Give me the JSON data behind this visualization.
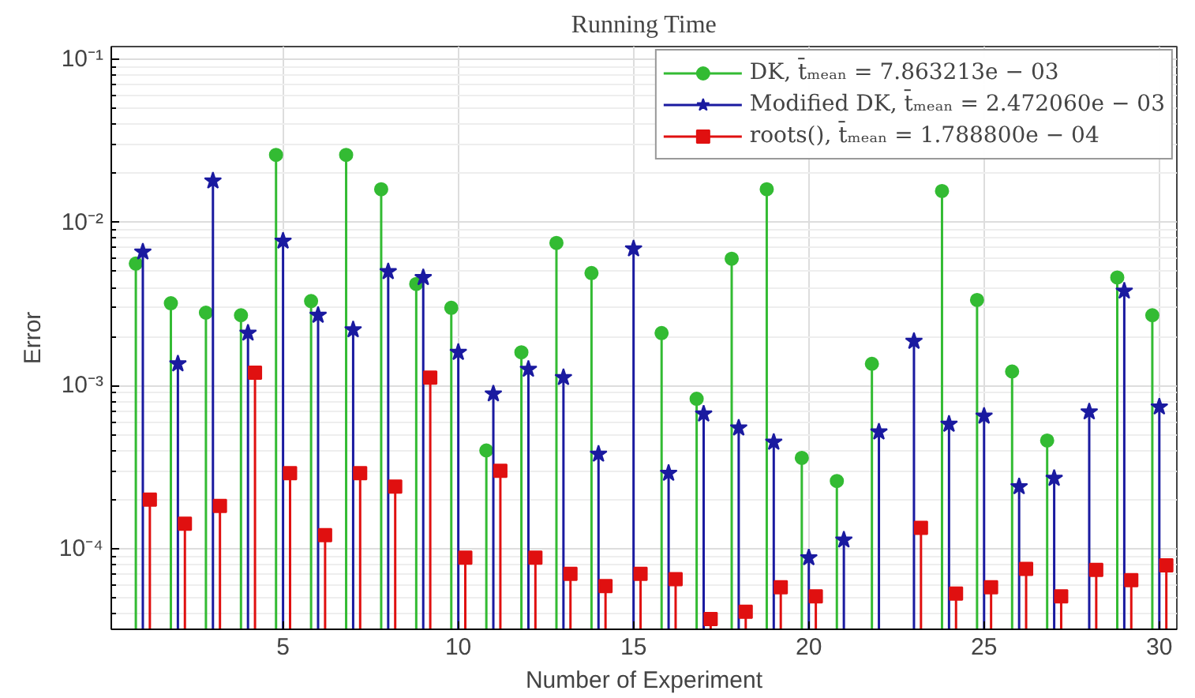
{
  "chart_data": {
    "type": "lollipop",
    "title": "Running Time",
    "xlabel": "Number of Experiment",
    "ylabel": "Error",
    "log": true,
    "grid": true,
    "legend": "top right",
    "xlim": [
      0.1,
      30.5
    ],
    "xticks": [
      5,
      10,
      15,
      20,
      25,
      30
    ],
    "ylim": [
      3.2e-05,
      0.12
    ],
    "yticks": [
      {
        "value": 0.0001,
        "label": "10⁻⁴"
      },
      {
        "value": 0.001,
        "label": "10⁻³"
      },
      {
        "value": 0.01,
        "label": "10⁻²"
      },
      {
        "value": 0.1,
        "label": "10⁻¹"
      }
    ],
    "series": [
      {
        "name": "DK, t̄ₘₑₐₙ = 7.863213e − 03",
        "color": "#33bb33",
        "marker": "circle",
        "x": [
          0.8,
          1.8,
          2.8,
          3.8,
          4.8,
          5.8,
          6.8,
          7.8,
          8.8,
          9.8,
          10.8,
          11.8,
          12.8,
          13.8,
          14.8,
          15.8,
          16.8,
          17.8,
          18.8,
          19.8,
          20.8,
          21.8,
          22.8,
          23.8,
          24.8,
          25.8,
          26.8,
          27.8,
          28.8,
          29.8
        ],
        "values": [
          0.0056,
          0.0032,
          0.0028,
          0.0027,
          0.026,
          0.0033,
          0.026,
          0.016,
          0.0042,
          0.003,
          0.0004,
          0.0016,
          0.0075,
          0.0049,
          null,
          0.0021,
          0.00083,
          0.006,
          0.016,
          0.00036,
          0.00026,
          0.00136,
          null,
          0.0156,
          0.00335,
          0.00122,
          0.00046,
          null,
          0.0046,
          0.0027
        ]
      },
      {
        "name": "Modified DK, t̄ₘₑₐₙ = 2.472060e − 03",
        "color": "#1a1aa0",
        "marker": "star",
        "x": [
          1,
          2,
          3,
          4,
          5,
          6,
          7,
          8,
          9,
          10,
          11,
          12,
          13,
          14,
          15,
          16,
          17,
          18,
          19,
          20,
          21,
          22,
          23,
          24,
          25,
          26,
          27,
          28,
          29,
          30
        ],
        "values": [
          0.0066,
          0.00136,
          0.018,
          0.0021,
          0.0077,
          0.0027,
          0.0022,
          0.005,
          0.0046,
          0.0016,
          0.00089,
          0.00126,
          0.00112,
          0.00038,
          0.0069,
          0.00029,
          0.00067,
          0.00055,
          0.00045,
          8.8e-05,
          0.000113,
          0.00052,
          0.00187,
          0.00058,
          0.00065,
          0.00024,
          0.00027,
          0.00069,
          0.0038,
          0.00074
        ]
      },
      {
        "name": "roots(), t̄ₘₑₐₙ = 1.788800e − 04",
        "color": "#e01010",
        "marker": "square",
        "x": [
          1.2,
          2.2,
          3.2,
          4.2,
          5.2,
          6.2,
          7.2,
          8.2,
          9.2,
          10.2,
          11.2,
          12.2,
          13.2,
          14.2,
          15.2,
          16.2,
          17.2,
          18.2,
          19.2,
          20.2,
          21.2,
          22.2,
          23.2,
          24.2,
          25.2,
          26.2,
          27.2,
          28.2,
          29.2,
          30.2
        ],
        "values": [
          0.0002,
          0.000142,
          0.000183,
          0.0012,
          0.00029,
          0.000121,
          0.00029,
          0.00024,
          0.00112,
          8.8e-05,
          0.0003,
          8.8e-05,
          7e-05,
          5.9e-05,
          7e-05,
          6.5e-05,
          3.7e-05,
          4.1e-05,
          5.8e-05,
          5.1e-05,
          null,
          null,
          0.000134,
          5.3e-05,
          5.8e-05,
          7.5e-05,
          5.1e-05,
          7.4e-05,
          6.4e-05,
          7.9e-05
        ]
      }
    ]
  }
}
